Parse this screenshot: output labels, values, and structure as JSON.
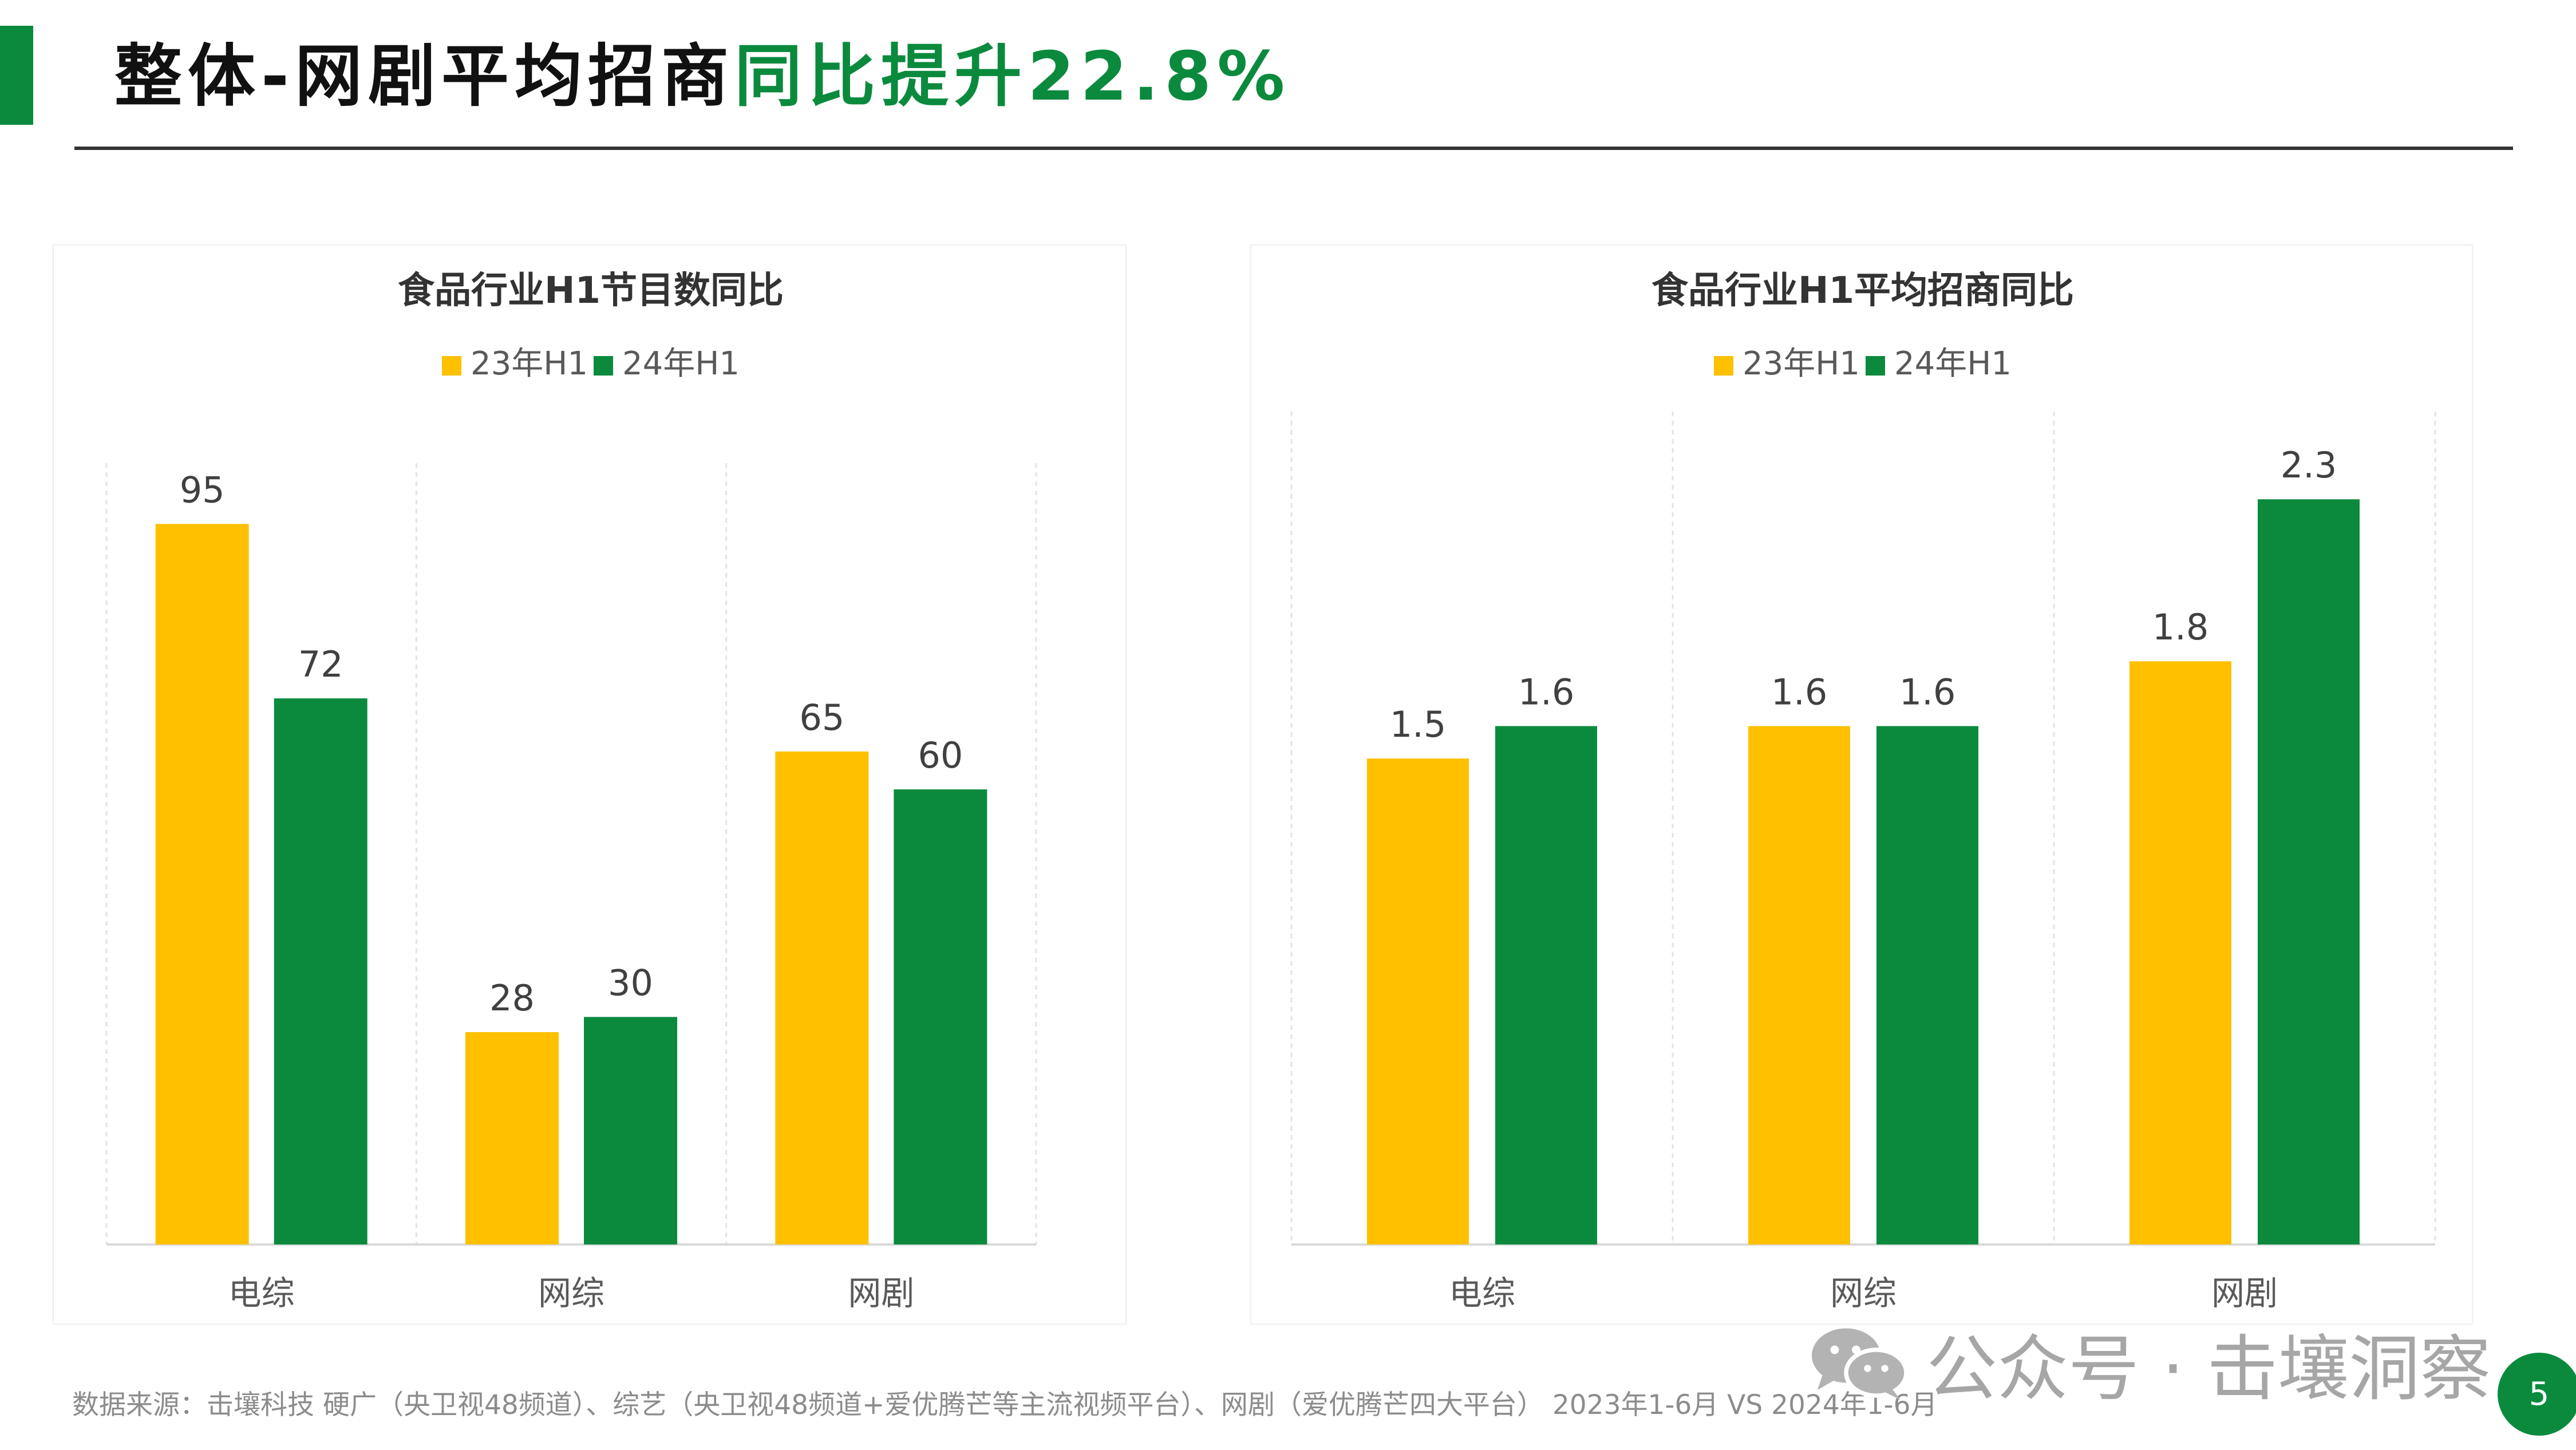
{
  "page": {
    "title_main": "整体-网剧平均招商",
    "title_highlight": "同比提升22.8%",
    "source": "数据来源：击壤科技 硬广（央卫视48频道）、综艺（央卫视48频道+爱优腾芒等主流视频平台）、网剧（爱优腾芒四大平台） 2023年1-6月 VS 2024年1-6月",
    "watermark": "公众号 · 击壤洞察",
    "page_number": "5",
    "accent_color": "#0b8a3e"
  },
  "chart_data": [
    {
      "type": "bar",
      "title": "食品行业H1节目数同比",
      "categories": [
        "电综",
        "网综",
        "网剧"
      ],
      "series": [
        {
          "name": "23年H1",
          "color": "#ffc000",
          "values": [
            95,
            28,
            65
          ],
          "labels": [
            "95",
            "28",
            "65"
          ]
        },
        {
          "name": "24年H1",
          "color": "#0b8a3e",
          "values": [
            72,
            30,
            60
          ],
          "labels": [
            "72",
            "30",
            "60"
          ]
        }
      ],
      "ylim": [
        0,
        100
      ],
      "grid": "vertical-dashed",
      "legend": "top-center"
    },
    {
      "type": "bar",
      "title": "食品行业H1平均招商同比",
      "categories": [
        "电综",
        "网综",
        "网剧"
      ],
      "series": [
        {
          "name": "23年H1",
          "color": "#ffc000",
          "values": [
            1.5,
            1.6,
            1.8
          ],
          "labels": [
            "1.5",
            "1.6",
            "1.8"
          ]
        },
        {
          "name": "24年H1",
          "color": "#0b8a3e",
          "values": [
            1.6,
            1.6,
            2.3
          ],
          "labels": [
            "1.6",
            "1.6",
            "2.3"
          ]
        }
      ],
      "ylim": [
        0,
        2.5
      ],
      "grid": "vertical-dashed",
      "legend": "top-center"
    }
  ]
}
